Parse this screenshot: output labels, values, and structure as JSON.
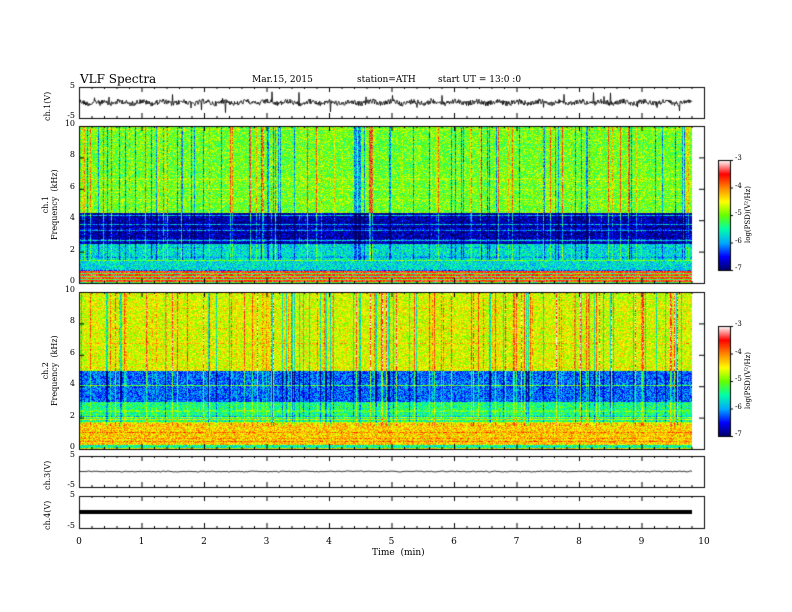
{
  "header": {
    "title": "VLF Spectra",
    "date": "Mar.15, 2015",
    "station": "station=ATH",
    "start": "start  UT =   13:0  :0"
  },
  "chart_data": [
    {
      "type": "line",
      "panel": "ch1_waveform",
      "ylabel": "ch.1(V)",
      "ylim": [
        -5,
        5
      ],
      "yticks": [
        "5",
        "-5"
      ],
      "x_range_min": [
        0,
        9.8
      ],
      "level": 0.0
    },
    {
      "type": "heatmap",
      "panel": "ch1_spectrogram",
      "ylabel": "ch.1\nFrequency  (kHz)",
      "ylim": [
        0,
        10
      ],
      "yticks": [
        "0",
        "2",
        "4",
        "6",
        "8",
        "10"
      ],
      "colorbar": {
        "label": "log(PSD)(V²/Hz)",
        "range": [
          -7,
          -3
        ],
        "ticks": [
          "-3",
          "-4",
          "-5",
          "-6",
          "-7"
        ]
      },
      "bands": [
        {
          "from_khz": 0.0,
          "to_khz": 0.8,
          "logpsd": -3.6
        },
        {
          "from_khz": 0.8,
          "to_khz": 2.5,
          "logpsd": -5.7
        },
        {
          "from_khz": 2.5,
          "to_khz": 4.5,
          "logpsd": -6.8
        },
        {
          "from_khz": 4.5,
          "to_khz": 10,
          "logpsd": -5.0
        }
      ]
    },
    {
      "type": "heatmap",
      "panel": "ch2_spectrogram",
      "ylabel": "ch.2\nFrequency  (kHz)",
      "ylim": [
        0,
        10
      ],
      "yticks": [
        "0",
        "2",
        "4",
        "6",
        "8",
        "10"
      ],
      "colorbar": {
        "label": "log(PSD)(V²/Hz)",
        "range": [
          -7,
          -3
        ],
        "ticks": [
          "-3",
          "-4",
          "-5",
          "-6",
          "-7"
        ]
      },
      "bands": [
        {
          "from_khz": 0.0,
          "to_khz": 0.3,
          "logpsd": -5.5
        },
        {
          "from_khz": 0.3,
          "to_khz": 1.7,
          "logpsd": -4.3
        },
        {
          "from_khz": 1.7,
          "to_khz": 3.0,
          "logpsd": -5.4
        },
        {
          "from_khz": 3.0,
          "to_khz": 5.0,
          "logpsd": -6.2
        },
        {
          "from_khz": 5.0,
          "to_khz": 10,
          "logpsd": -4.6
        }
      ]
    },
    {
      "type": "line",
      "panel": "ch3_waveform",
      "ylabel": "ch.3(V)",
      "ylim": [
        -5,
        5
      ],
      "yticks": [
        "5",
        "-5"
      ],
      "x_range_min": [
        0,
        9.8
      ],
      "level": 0.0
    },
    {
      "type": "line",
      "panel": "ch4_waveform",
      "ylabel": "ch.4(V)",
      "ylim": [
        -5,
        5
      ],
      "yticks": [
        "5",
        "-5"
      ],
      "x_range_min": [
        0,
        9.8
      ],
      "level": 0.0
    }
  ],
  "xaxis": {
    "label": "Time  (min)",
    "ticks": [
      "0",
      "1",
      "2",
      "3",
      "4",
      "5",
      "6",
      "7",
      "8",
      "9",
      "10"
    ],
    "xlim": [
      0,
      10
    ]
  },
  "colormap": [
    "#000066",
    "#0000ff",
    "#00aaff",
    "#00ffaa",
    "#66ff00",
    "#ffff00",
    "#ff8800",
    "#ff0000",
    "#ffffff"
  ]
}
